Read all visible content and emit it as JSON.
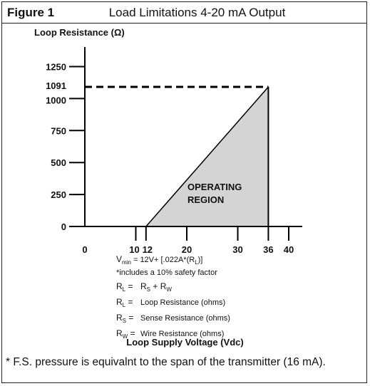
{
  "header": {
    "figure_label": "Figure 1",
    "title": "Load Limitations 4-20 mA Output"
  },
  "chart_data": {
    "type": "area",
    "title": "Load Limitations 4-20 mA Output",
    "xlabel": "Loop Supply Voltage (Vdc)",
    "ylabel": "Loop Resistance (Ω)",
    "xlim": [
      0,
      40
    ],
    "ylim": [
      0,
      1250
    ],
    "x_ticks": [
      "0",
      "10",
      "12",
      "20",
      "30",
      "36",
      "40"
    ],
    "x_tick_values": [
      0,
      10,
      12,
      20,
      30,
      36,
      40
    ],
    "y_ticks": [
      "0",
      "250",
      "500",
      "750",
      "1000",
      "1091",
      "1250"
    ],
    "y_tick_values": [
      0,
      250,
      500,
      750,
      1000,
      1091,
      1250
    ],
    "series": [
      {
        "values": [
          [
            12,
            0
          ],
          [
            36,
            1091
          ]
        ]
      }
    ],
    "region": {
      "label_line1": "OPERATING",
      "label_line2": "REGION",
      "polygon": [
        [
          12,
          0
        ],
        [
          36,
          1091
        ],
        [
          36,
          0
        ]
      ],
      "fill": "#d4d4d4"
    },
    "reference_line": {
      "y": 1091,
      "x_from": 0,
      "x_to": 36,
      "style": "dashed"
    },
    "grid": false
  },
  "notes": {
    "formula": "min = 12V+ [.022A*(R",
    "formula_prefix": "V",
    "formula_sub1": "min",
    "formula_sub2": "L",
    "formula_close": ")]",
    "formula_eq": " = 12V+ [.022A*(R",
    "safety": "*includes a 10% safety factor",
    "rows": [
      {
        "sym": "R",
        "sub": "L",
        "eq": "=",
        "text_r1": "R",
        "sub_r1": "S",
        "plus": " + R",
        "sub_r2": "W",
        "desc": ""
      },
      {
        "sym": "R",
        "sub": "L",
        "eq": "=",
        "desc": "Loop Resistance (ohms)"
      },
      {
        "sym": "R",
        "sub": "S",
        "eq": "=",
        "desc": "Sense Resistance (ohms)"
      },
      {
        "sym": "R",
        "sub": "W",
        "eq": "=",
        "desc": "Wire Resistance (ohms)"
      }
    ]
  },
  "footnote": "* F.S. pressure is equivalnt to the span of the transmitter (16 mA)."
}
